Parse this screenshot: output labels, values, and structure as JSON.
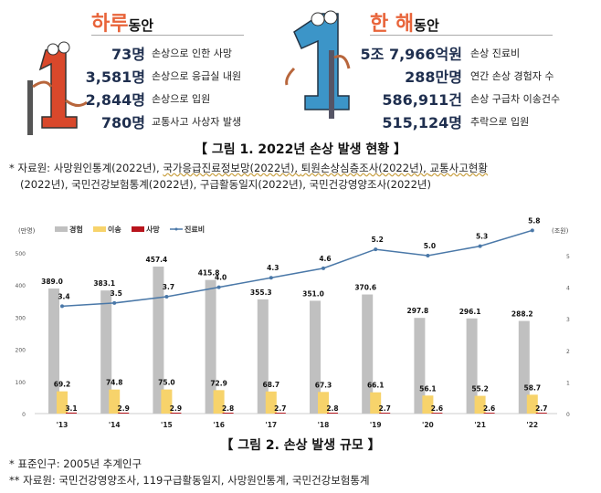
{
  "day": {
    "title_highlight": "하루",
    "title_rest": "동안",
    "mascot_color": "#d9482b",
    "items": [
      {
        "value": "73명",
        "label": "손상으로 인한 사망"
      },
      {
        "value": "3,581명",
        "label": "손상으로 응급실 내원"
      },
      {
        "value": "2,844명",
        "label": "손상으로 입원"
      },
      {
        "value": "780명",
        "label": "교통사고 사상자 발생"
      }
    ]
  },
  "year": {
    "title_highlight": "한 해",
    "title_rest": "동안",
    "mascot_color": "#3c95c8",
    "items": [
      {
        "value": "5조 7,966억원",
        "label": "손상 진료비"
      },
      {
        "value": "288만명",
        "label": "연간 손상 경험자 수"
      },
      {
        "value": "586,911건",
        "label": "손상 구급차 이송건수"
      },
      {
        "value": "515,124명",
        "label": "추락으로 입원"
      }
    ]
  },
  "figure1": {
    "caption": "【 그림 1. 2022년 손상 발생 현황 】",
    "source_prefix": "* 자료원: ",
    "sources_line1": [
      "사망원인통계(2022년), ",
      "국가응급진료정보망(2022년), ",
      "퇴원손상심층조사(2022년), ",
      "교통사고현황"
    ],
    "sources_line2": "(2022년), 국민건강보험통계(2022년), 구급활동일지(2022년), 국민건강영양조사(2022년)"
  },
  "figure2": {
    "caption": "【 그림 2. 손상 발생 규모 】",
    "note1": "* 표준인구: 2005년 추계인구",
    "note2": "** 자료원: 국민건강영양조사, 119구급활동일지, 사망원인통계, 국민건강보험통계"
  },
  "chart_data": {
    "type": "bar+line",
    "categories": [
      "'13",
      "'14",
      "'15",
      "'16",
      "'17",
      "'18",
      "'19",
      "'20",
      "'21",
      "'22"
    ],
    "left_axis": {
      "unit": "(만명)",
      "ylim": [
        0,
        500
      ],
      "ticks": [
        0,
        100,
        200,
        300,
        400,
        500
      ]
    },
    "right_axis": {
      "unit": "(조원)",
      "ylim": [
        0,
        6
      ],
      "ticks": [
        0,
        1,
        2,
        3,
        4,
        5
      ]
    },
    "series": [
      {
        "name": "경험",
        "type": "bar",
        "axis": "left",
        "color": "#c0c0c0",
        "values": [
          389.0,
          383.1,
          457.4,
          415.8,
          355.3,
          351.0,
          370.6,
          297.8,
          296.1,
          288.2
        ]
      },
      {
        "name": "이송",
        "type": "bar",
        "axis": "left",
        "color": "#f7d36b",
        "values": [
          69.2,
          74.8,
          75.0,
          72.9,
          68.7,
          67.3,
          66.1,
          56.1,
          55.2,
          58.7
        ]
      },
      {
        "name": "사망",
        "type": "bar",
        "axis": "left",
        "color": "#b8141c",
        "values": [
          3.1,
          2.9,
          2.9,
          2.8,
          2.7,
          2.8,
          2.7,
          2.6,
          2.6,
          2.7
        ]
      },
      {
        "name": "진료비",
        "type": "line",
        "axis": "right",
        "color": "#4a78a8",
        "values": [
          3.4,
          3.5,
          3.7,
          4.0,
          4.3,
          4.6,
          5.2,
          5.0,
          5.3,
          5.8
        ]
      }
    ],
    "legend": "top-left",
    "grid": false
  }
}
